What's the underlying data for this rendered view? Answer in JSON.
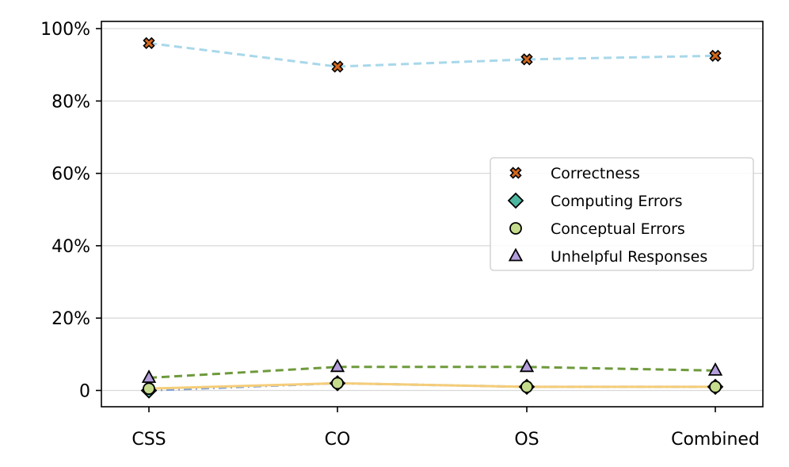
{
  "chart_data": {
    "type": "line",
    "categories": [
      "CSS",
      "CO",
      "OS",
      "Combined"
    ],
    "ylim": [
      -4.5,
      102
    ],
    "yticks": [
      {
        "value": 0,
        "label": "0"
      },
      {
        "value": 20,
        "label": "20%"
      },
      {
        "value": 40,
        "label": "40%"
      },
      {
        "value": 60,
        "label": "60%"
      },
      {
        "value": 80,
        "label": "80%"
      },
      {
        "value": 100,
        "label": "100%"
      }
    ],
    "grid": "horizontal",
    "legend_position": "center-right",
    "series": [
      {
        "name": "Correctness",
        "marker": "x",
        "marker_color": "#D2691E",
        "line_color": "#A8D8EA",
        "line_style": "dashed",
        "values": [
          96,
          89.5,
          91.5,
          92.5
        ]
      },
      {
        "name": "Computing Errors",
        "marker": "diamond",
        "marker_color": "#4DB6A0",
        "line_color": "#7FA3D9",
        "line_style": "dashdot",
        "values": [
          0,
          2,
          1,
          1
        ]
      },
      {
        "name": "Conceptual Errors",
        "marker": "circle",
        "marker_color": "#C5DC8C",
        "line_color": "#F5CD79",
        "line_style": "solid",
        "values": [
          0.5,
          2,
          1,
          1
        ]
      },
      {
        "name": "Unhelpful Responses",
        "marker": "triangle",
        "marker_color": "#B39DDB",
        "line_color": "#6E9A3C",
        "line_style": "dashed",
        "values": [
          3.5,
          6.5,
          6.5,
          5.5
        ]
      }
    ]
  }
}
